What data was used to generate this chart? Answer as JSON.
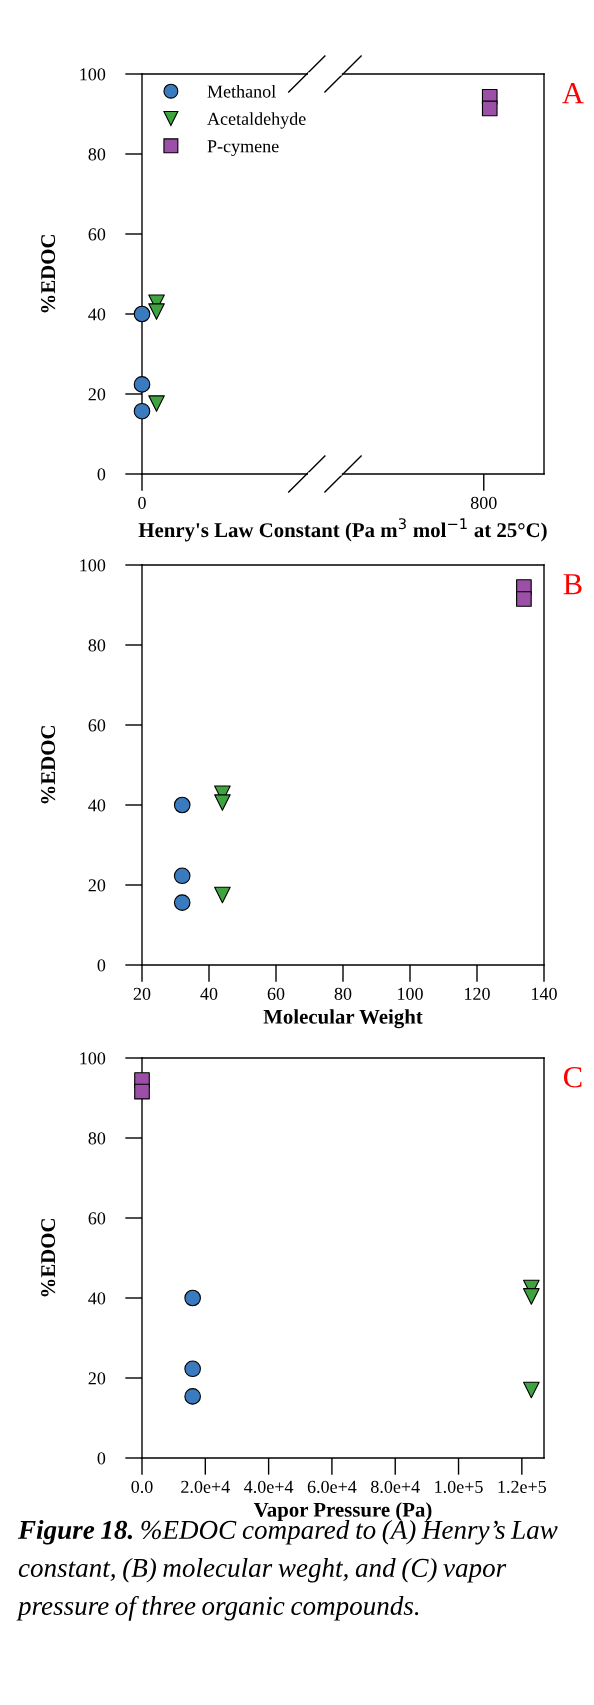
{
  "chart_data": [
    {
      "type": "scatter",
      "xlabel": "Henry's Law Constant (Pa m$^{3}$ mol$^{−1}$ at 25°C)",
      "ylabel": "%EDOC",
      "xlim": [
        0,
        941
      ],
      "xticks": [
        0,
        800
      ],
      "ylim": [
        0,
        100
      ],
      "yticks": [
        0,
        20,
        40,
        60,
        80,
        100
      ],
      "legend": "top left",
      "grid": false,
      "annotations": [
        "A"
      ],
      "series": [
        {
          "name": "Methanol",
          "color": "#3a7bbf",
          "marker": "circle",
          "x": [
            0,
            0,
            0
          ],
          "values": [
            40,
            22.4,
            15.7
          ]
        },
        {
          "name": "Acetaldehyde",
          "color": "#3fa33f",
          "marker": "triangle",
          "x": [
            34,
            34,
            34
          ],
          "values": [
            42.8,
            40.6,
            17.6
          ]
        },
        {
          "name": "P-cymene",
          "color": "#9b4fa6",
          "marker": "square",
          "x": [
            814,
            814
          ],
          "values": [
            94.3,
            91.4
          ]
        }
      ]
    },
    {
      "type": "scatter",
      "xlabel": "Molecular Weight",
      "ylabel": "%EDOC",
      "xlim": [
        20,
        140
      ],
      "xticks": [
        20,
        40,
        60,
        80,
        100,
        120,
        140
      ],
      "ylim": [
        0,
        100
      ],
      "yticks": [
        0,
        20,
        40,
        60,
        80,
        100
      ],
      "grid": false,
      "annotations": [
        "B"
      ],
      "series": [
        {
          "color": "#3a7bbf",
          "marker": "circle",
          "x": [
            32,
            32,
            32
          ],
          "values": [
            40,
            22.3,
            15.6
          ]
        },
        {
          "color": "#3fa33f",
          "marker": "triangle",
          "x": [
            44,
            44,
            44
          ],
          "values": [
            42.8,
            40.6,
            17.5
          ]
        },
        {
          "color": "#9b4fa6",
          "marker": "square",
          "x": [
            134,
            134
          ],
          "values": [
            94.5,
            91.5
          ]
        }
      ]
    },
    {
      "type": "scatter",
      "xlabel": "Vapor Pressure (Pa)",
      "ylabel": "%EDOC",
      "xlim": [
        0,
        127000
      ],
      "xticks": [
        {
          "value": 0,
          "label": "0.0"
        },
        {
          "value": 20000,
          "label": "2.0e+4"
        },
        {
          "value": 40000,
          "label": "4.0e+4"
        },
        {
          "value": 60000,
          "label": "6.0e+4"
        },
        {
          "value": 80000,
          "label": "8.0e+4"
        },
        {
          "value": 100000,
          "label": "1.0e+5"
        },
        {
          "value": 120000,
          "label": "1.2e+5"
        }
      ],
      "ylim": [
        0,
        100
      ],
      "yticks": [
        0,
        20,
        40,
        60,
        80,
        100
      ],
      "grid": false,
      "annotations": [
        "C",
        "Figure 18. %EDOC compared to (A) Henry’s Law constant, (B) molecular weght, and (C) vapor pressure of three organic compounds."
      ],
      "series": [
        {
          "color": "#3a7bbf",
          "marker": "circle",
          "x": [
            16000,
            16000,
            16000
          ],
          "values": [
            40,
            22.3,
            15.4
          ]
        },
        {
          "color": "#3fa33f",
          "marker": "triangle",
          "x": [
            123000,
            123000,
            123000
          ],
          "values": [
            42.5,
            40.4,
            17.0
          ]
        },
        {
          "color": "#9b4fa6",
          "marker": "square",
          "x": [
            0,
            0
          ],
          "values": [
            94.5,
            91.6
          ]
        }
      ]
    }
  ]
}
